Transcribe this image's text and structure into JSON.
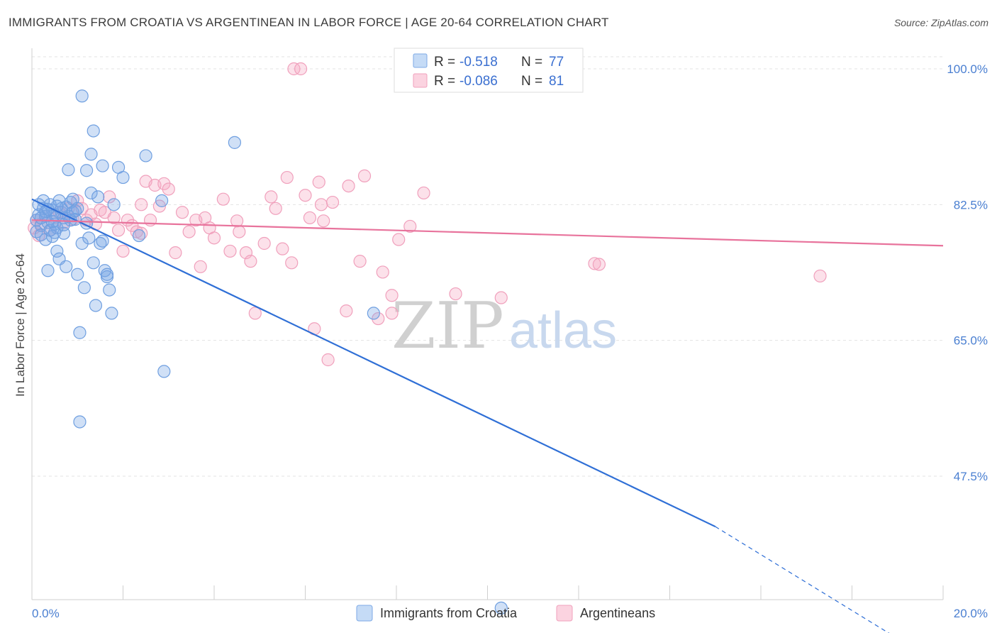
{
  "title": "IMMIGRANTS FROM CROATIA VS ARGENTINEAN IN LABOR FORCE | AGE 20-64 CORRELATION CHART",
  "source": "Source: ZipAtlas.com",
  "watermark": {
    "zip": "ZIP",
    "atlas": "atlas"
  },
  "legend": {
    "rows": [
      {
        "r_label": "R =",
        "r_value": "-0.518",
        "n_label": "N =",
        "n_value": "77",
        "color": "#6fa3e6"
      },
      {
        "r_label": "R =",
        "r_value": "-0.086",
        "n_label": "N =",
        "n_value": "81",
        "color": "#f0a0bc"
      }
    ]
  },
  "bottom_legend": [
    "Immigrants from Croatia",
    "Argentineans"
  ],
  "chart_data": {
    "type": "scatter",
    "title": "IMMIGRANTS FROM CROATIA VS ARGENTINEAN IN LABOR FORCE | AGE 20-64 CORRELATION CHART",
    "xlabel": "",
    "ylabel": "In Labor Force | Age 20-64",
    "xlim": [
      0,
      20
    ],
    "ylim": [
      30,
      101.5
    ],
    "x_tick_labels": [
      "0.0%",
      "20.0%"
    ],
    "y_tick_labels": [
      "100.0%",
      "82.5%",
      "65.0%",
      "47.5%"
    ],
    "y_ticks": [
      100,
      82.5,
      65,
      47.5
    ],
    "grid": true,
    "legend_position": "top-center",
    "series": [
      {
        "name": "Immigrants from Croatia",
        "color": "#6fa3e6",
        "r": -0.518,
        "n": 77,
        "trend": {
          "x0": 0,
          "y0": 83.2,
          "x1": 15.0,
          "y1": 41.0,
          "dashed_to_x": 20,
          "dashed_to_y": 27.0
        },
        "points": [
          [
            0.1,
            80.5
          ],
          [
            0.15,
            81.2
          ],
          [
            0.2,
            79.8
          ],
          [
            0.25,
            82.0
          ],
          [
            0.3,
            81.0
          ],
          [
            0.35,
            80.2
          ],
          [
            0.4,
            82.5
          ],
          [
            0.45,
            81.8
          ],
          [
            0.5,
            80.0
          ],
          [
            0.55,
            79.5
          ],
          [
            0.6,
            83.0
          ],
          [
            0.65,
            81.5
          ],
          [
            0.7,
            80.8
          ],
          [
            0.75,
            82.2
          ],
          [
            0.8,
            81.0
          ],
          [
            0.85,
            82.8
          ],
          [
            0.9,
            81.5
          ],
          [
            0.95,
            80.6
          ],
          [
            0.1,
            79.0
          ],
          [
            0.2,
            78.6
          ],
          [
            0.3,
            78.0
          ],
          [
            0.35,
            74.0
          ],
          [
            0.45,
            78.4
          ],
          [
            0.55,
            76.5
          ],
          [
            0.6,
            75.5
          ],
          [
            0.7,
            78.8
          ],
          [
            0.75,
            74.5
          ],
          [
            0.8,
            87.0
          ],
          [
            0.9,
            83.2
          ],
          [
            1.0,
            73.5
          ],
          [
            1.05,
            66.0
          ],
          [
            1.1,
            77.5
          ],
          [
            1.15,
            71.8
          ],
          [
            1.2,
            86.9
          ],
          [
            1.25,
            78.2
          ],
          [
            1.3,
            84.0
          ],
          [
            1.35,
            75.0
          ],
          [
            1.4,
            69.5
          ],
          [
            1.45,
            83.5
          ],
          [
            1.5,
            77.5
          ],
          [
            1.55,
            87.5
          ],
          [
            1.6,
            74.0
          ],
          [
            1.65,
            73.2
          ],
          [
            1.7,
            71.5
          ],
          [
            1.75,
            68.5
          ],
          [
            1.8,
            82.5
          ],
          [
            1.9,
            87.3
          ],
          [
            2.0,
            86.0
          ],
          [
            2.35,
            78.5
          ],
          [
            2.5,
            88.8
          ],
          [
            2.9,
            61.0
          ],
          [
            2.85,
            83.0
          ],
          [
            1.1,
            96.5
          ],
          [
            1.35,
            92.0
          ],
          [
            1.3,
            89.0
          ],
          [
            4.45,
            90.5
          ],
          [
            1.05,
            54.5
          ],
          [
            10.3,
            30.5
          ],
          [
            7.5,
            68.5
          ],
          [
            1.55,
            77.8
          ],
          [
            1.65,
            73.5
          ],
          [
            0.25,
            83.0
          ],
          [
            0.4,
            79.2
          ],
          [
            0.5,
            81.2
          ],
          [
            0.65,
            82.0
          ],
          [
            0.85,
            80.5
          ],
          [
            1.0,
            82.0
          ],
          [
            0.15,
            82.5
          ],
          [
            0.3,
            81.6
          ],
          [
            0.45,
            80.3
          ],
          [
            0.55,
            82.3
          ],
          [
            0.7,
            79.9
          ],
          [
            0.95,
            81.7
          ],
          [
            1.2,
            80.1
          ],
          [
            0.2,
            80.8
          ],
          [
            0.35,
            81.9
          ],
          [
            0.5,
            78.9
          ]
        ]
      },
      {
        "name": "Argentineans",
        "color": "#f0a0bc",
        "r": -0.086,
        "n": 81,
        "trend": {
          "x0": 0,
          "y0": 80.5,
          "x1": 20,
          "y1": 77.2
        },
        "points": [
          [
            0.05,
            79.5
          ],
          [
            0.1,
            80.5
          ],
          [
            0.2,
            80.0
          ],
          [
            0.3,
            81.0
          ],
          [
            0.4,
            79.2
          ],
          [
            0.5,
            80.8
          ],
          [
            0.6,
            81.5
          ],
          [
            0.7,
            80.2
          ],
          [
            0.8,
            82.0
          ],
          [
            0.9,
            80.6
          ],
          [
            1.0,
            83.0
          ],
          [
            1.1,
            82.0
          ],
          [
            1.2,
            80.5
          ],
          [
            1.3,
            81.2
          ],
          [
            1.4,
            80.0
          ],
          [
            1.5,
            81.8
          ],
          [
            1.6,
            81.5
          ],
          [
            1.7,
            83.5
          ],
          [
            1.8,
            80.8
          ],
          [
            1.9,
            79.2
          ],
          [
            2.0,
            76.5
          ],
          [
            2.1,
            80.5
          ],
          [
            2.2,
            79.8
          ],
          [
            2.3,
            79.0
          ],
          [
            2.4,
            82.5
          ],
          [
            2.5,
            85.5
          ],
          [
            2.6,
            80.5
          ],
          [
            2.7,
            85.0
          ],
          [
            2.8,
            82.3
          ],
          [
            2.9,
            85.2
          ],
          [
            3.0,
            84.5
          ],
          [
            3.15,
            76.3
          ],
          [
            3.3,
            81.5
          ],
          [
            3.45,
            79.0
          ],
          [
            3.6,
            80.5
          ],
          [
            3.7,
            74.5
          ],
          [
            3.8,
            80.8
          ],
          [
            3.9,
            79.5
          ],
          [
            4.0,
            78.2
          ],
          [
            4.2,
            83.2
          ],
          [
            4.35,
            76.5
          ],
          [
            4.5,
            80.4
          ],
          [
            4.55,
            79.0
          ],
          [
            4.7,
            76.3
          ],
          [
            4.8,
            75.2
          ],
          [
            4.9,
            68.5
          ],
          [
            5.1,
            77.5
          ],
          [
            5.25,
            83.5
          ],
          [
            5.35,
            82.0
          ],
          [
            5.5,
            76.8
          ],
          [
            5.6,
            86.0
          ],
          [
            5.7,
            75.0
          ],
          [
            5.75,
            100.0
          ],
          [
            6.0,
            83.7
          ],
          [
            6.1,
            80.8
          ],
          [
            6.2,
            66.5
          ],
          [
            6.3,
            85.4
          ],
          [
            6.35,
            82.5
          ],
          [
            6.4,
            80.4
          ],
          [
            6.5,
            62.5
          ],
          [
            6.6,
            82.8
          ],
          [
            6.95,
            84.9
          ],
          [
            6.9,
            68.8
          ],
          [
            7.2,
            75.2
          ],
          [
            7.3,
            86.2
          ],
          [
            7.6,
            67.8
          ],
          [
            7.7,
            73.8
          ],
          [
            7.9,
            68.5
          ],
          [
            8.05,
            78.0
          ],
          [
            7.9,
            70.8
          ],
          [
            8.3,
            79.7
          ],
          [
            8.6,
            84.0
          ],
          [
            9.3,
            71.0
          ],
          [
            9.6,
            100.0
          ],
          [
            10.3,
            70.5
          ],
          [
            12.35,
            74.9
          ],
          [
            12.45,
            74.8
          ],
          [
            17.3,
            73.3
          ],
          [
            5.9,
            100.0
          ],
          [
            2.4,
            78.8
          ],
          [
            0.15,
            78.5
          ]
        ]
      }
    ]
  }
}
